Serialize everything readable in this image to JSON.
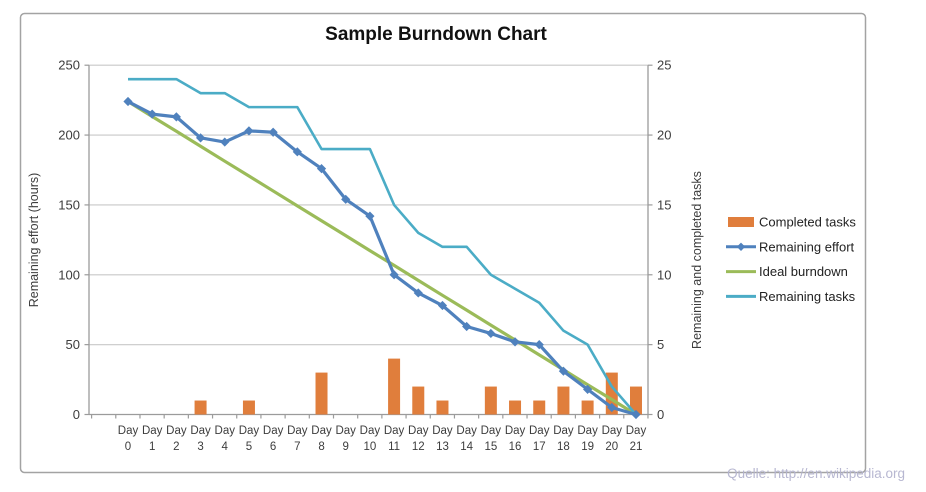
{
  "chart_data": {
    "type": "combo",
    "title": "Sample Burndown Chart",
    "ylabel_left": "Remaining effort (hours)",
    "ylabel_right": "Remaining and completed tasks",
    "ylim_left": [
      0,
      250
    ],
    "ylim_right": [
      0,
      25
    ],
    "yticks_left": [
      0,
      50,
      100,
      150,
      200,
      250
    ],
    "yticks_right": [
      0,
      5,
      10,
      15,
      20,
      25
    ],
    "x_label_prefix": "Day",
    "categories": [
      0,
      1,
      2,
      3,
      4,
      5,
      6,
      7,
      8,
      9,
      10,
      11,
      12,
      13,
      14,
      15,
      16,
      17,
      18,
      19,
      20,
      21
    ],
    "grid": true,
    "legend_position": "right",
    "series": [
      {
        "name": "Completed tasks",
        "type": "bar",
        "axis": "right",
        "color": "#E07E3C",
        "values": [
          0,
          0,
          0,
          1,
          0,
          1,
          0,
          0,
          3,
          0,
          0,
          4,
          2,
          1,
          0,
          2,
          1,
          1,
          2,
          1,
          3,
          2
        ]
      },
      {
        "name": "Remaining effort",
        "type": "line",
        "marker": "diamond",
        "axis": "left",
        "color": "#4F81BD",
        "values": [
          224,
          215,
          213,
          198,
          195,
          203,
          202,
          188,
          176,
          154,
          142,
          100,
          87,
          78,
          63,
          58,
          52,
          50,
          31,
          18,
          5,
          0
        ]
      },
      {
        "name": "Ideal burndown",
        "type": "line",
        "axis": "left",
        "color": "#9BBB59",
        "values": [
          224,
          213.3,
          202.7,
          192,
          181.3,
          170.7,
          160,
          149.3,
          138.7,
          128,
          117.3,
          106.7,
          96,
          85.3,
          74.7,
          64,
          53.3,
          42.7,
          32,
          21.3,
          10.7,
          0
        ]
      },
      {
        "name": "Remaining tasks",
        "type": "line",
        "axis": "right",
        "color": "#4BACC6",
        "values": [
          24,
          24,
          24,
          23,
          23,
          22,
          22,
          22,
          19,
          19,
          19,
          15,
          13,
          12,
          12,
          10,
          9,
          8,
          6,
          5,
          2,
          0
        ]
      }
    ]
  },
  "watermark": {
    "text": "Quelle: http://en.wikipedia.org",
    "color": "#B4B4CF"
  },
  "colors": {
    "gridline": "#C8C8C8",
    "axis": "#9B9B9B",
    "frame_border": "#A3A3A3",
    "background": "#FFFFFF"
  }
}
